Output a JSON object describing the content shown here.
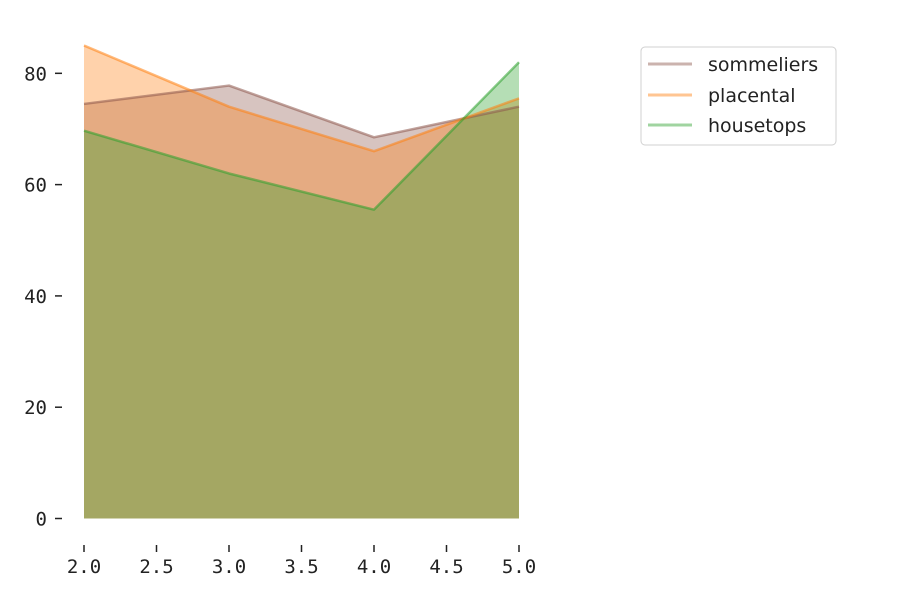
{
  "chart_data": {
    "type": "area",
    "x": [
      2.0,
      3.0,
      4.0,
      5.0
    ],
    "series": [
      {
        "name": "sommeliers",
        "values": [
          74.5,
          77.8,
          68.5,
          74.0
        ],
        "color": "#8c564b"
      },
      {
        "name": "placental",
        "values": [
          85.0,
          74.0,
          66.0,
          75.5
        ],
        "color": "#ff7f0e"
      },
      {
        "name": "housetops",
        "values": [
          69.7,
          62.0,
          55.5,
          82.0
        ],
        "color": "#2ca02c"
      }
    ],
    "xlim": [
      2.0,
      5.0
    ],
    "ylim": [
      0,
      85
    ],
    "x_ticks": [
      "2.0",
      "2.5",
      "3.0",
      "3.5",
      "4.0",
      "4.5",
      "5.0"
    ],
    "y_ticks": [
      "0",
      "20",
      "40",
      "60",
      "80"
    ],
    "title": "",
    "xlabel": "",
    "ylabel": "",
    "grid": false,
    "legend_position": "top-right, outside plot"
  }
}
